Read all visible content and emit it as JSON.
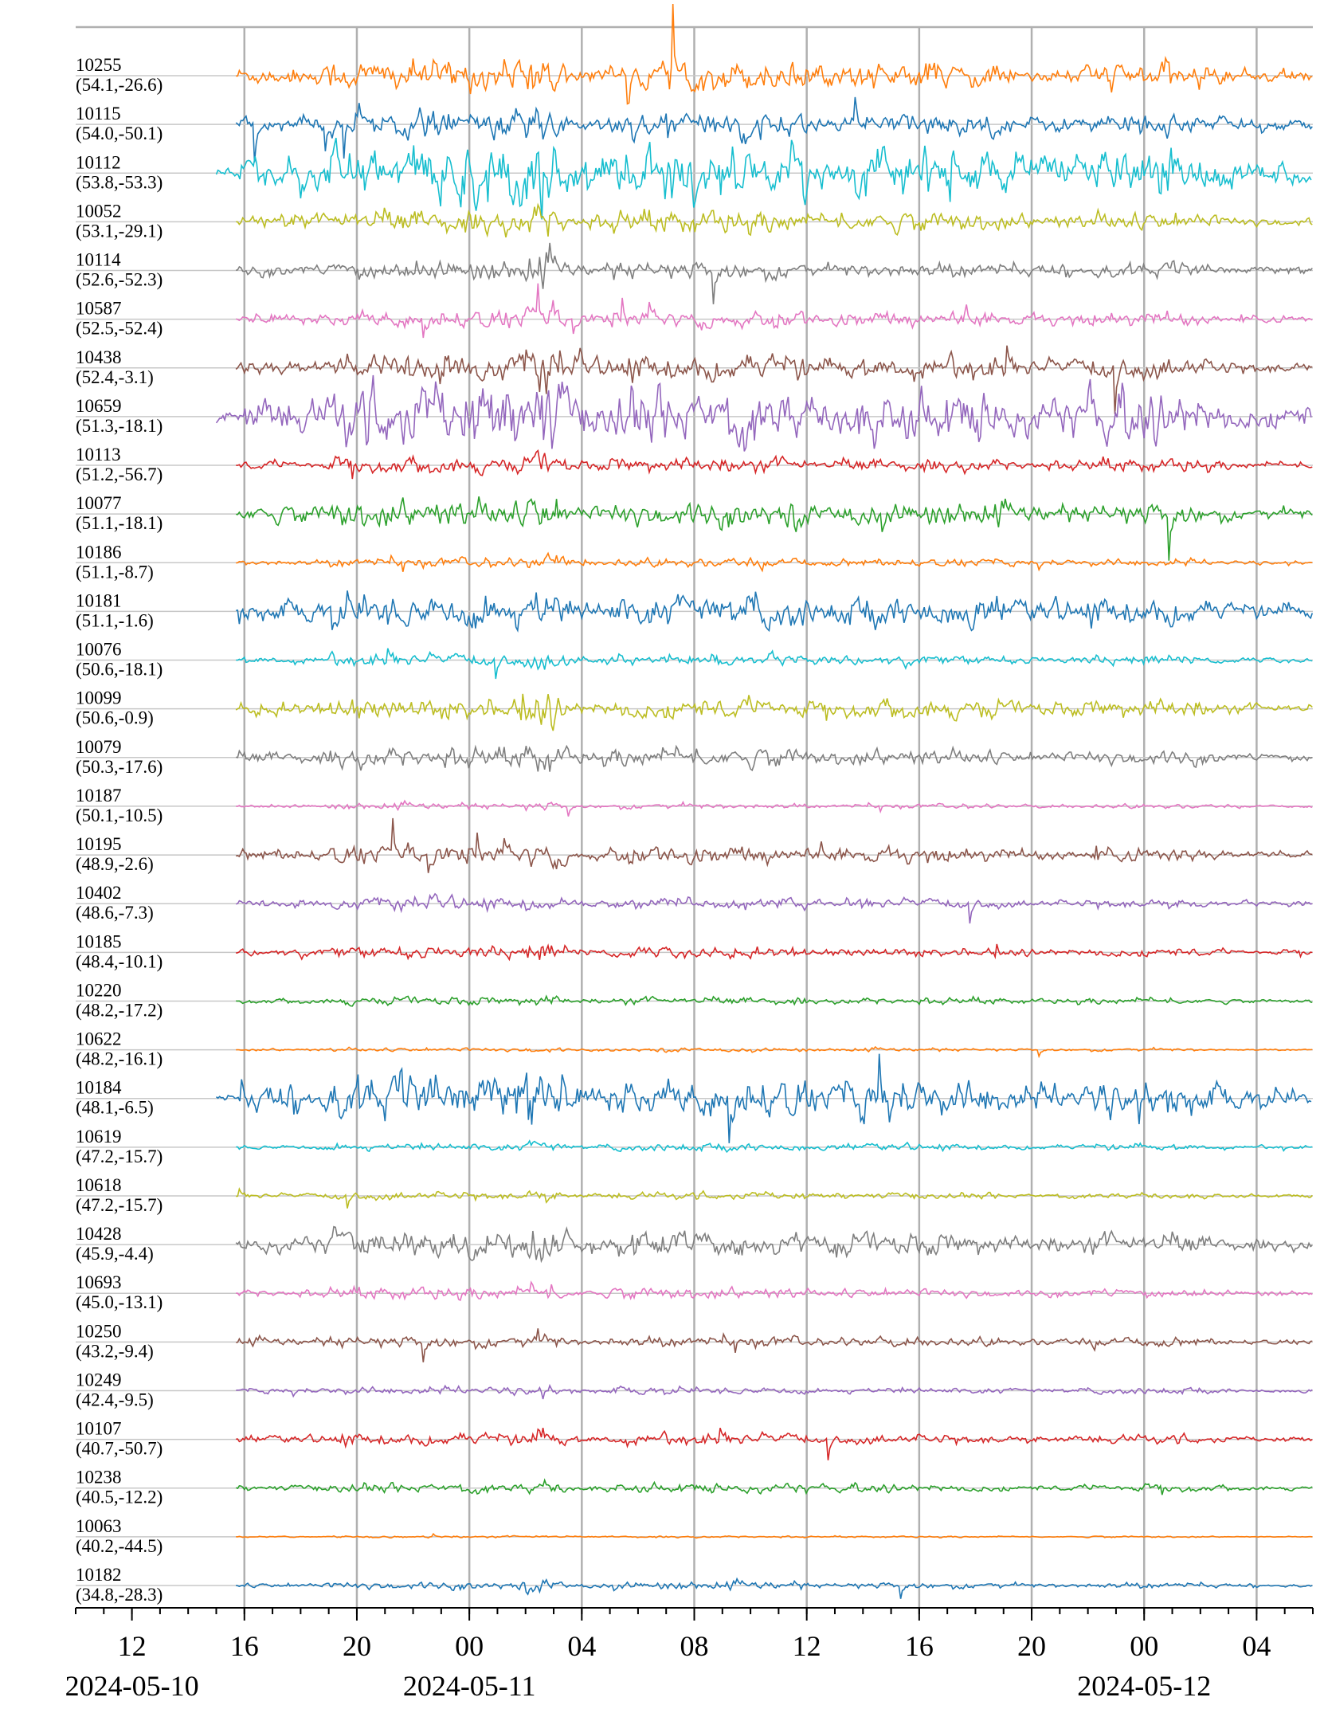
{
  "chart_data": {
    "type": "line",
    "title": "",
    "xlabel": "",
    "ylabel": "",
    "xlim": [
      "2024-05-10 10:00",
      "2024-05-12 06:00"
    ],
    "grid": true,
    "x_major_tick_labels": [
      "12",
      "16",
      "20",
      "00",
      "04",
      "08",
      "12",
      "16",
      "20",
      "00",
      "04"
    ],
    "date_labels": [
      "2024-05-10",
      "2024-05-11",
      "2024-05-12"
    ],
    "series": [
      {
        "station": "10255",
        "coords": "(54.1,-26.6)",
        "color": "#ff7f0e",
        "amp": 0.8
      },
      {
        "station": "10115",
        "coords": "(54.0,-50.1)",
        "color": "#1f77b4",
        "amp": 0.7
      },
      {
        "station": "10112",
        "coords": "(53.8,-53.3)",
        "color": "#17becf",
        "amp": 1.5
      },
      {
        "station": "10052",
        "coords": "(53.1,-29.1)",
        "color": "#bcbd22",
        "amp": 0.6
      },
      {
        "station": "10114",
        "coords": "(52.6,-52.3)",
        "color": "#7f7f7f",
        "amp": 0.5
      },
      {
        "station": "10587",
        "coords": "(52.5,-52.4)",
        "color": "#e377c2",
        "amp": 0.5
      },
      {
        "station": "10438",
        "coords": "(52.4,-3.1)",
        "color": "#8c564b",
        "amp": 0.7
      },
      {
        "station": "10659",
        "coords": "(51.3,-18.1)",
        "color": "#9467bd",
        "amp": 1.6
      },
      {
        "station": "10113",
        "coords": "(51.2,-56.7)",
        "color": "#d62728",
        "amp": 0.4
      },
      {
        "station": "10077",
        "coords": "(51.1,-18.1)",
        "color": "#2ca02c",
        "amp": 0.7
      },
      {
        "station": "10186",
        "coords": "(51.1,-8.7)",
        "color": "#ff7f0e",
        "amp": 0.25
      },
      {
        "station": "10181",
        "coords": "(51.1,-1.6)",
        "color": "#1f77b4",
        "amp": 0.9
      },
      {
        "station": "10076",
        "coords": "(50.6,-18.1)",
        "color": "#17becf",
        "amp": 0.3
      },
      {
        "station": "10099",
        "coords": "(50.6,-0.9)",
        "color": "#bcbd22",
        "amp": 0.6
      },
      {
        "station": "10079",
        "coords": "(50.3,-17.6)",
        "color": "#7f7f7f",
        "amp": 0.5
      },
      {
        "station": "10187",
        "coords": "(50.1,-10.5)",
        "color": "#e377c2",
        "amp": 0.15
      },
      {
        "station": "10195",
        "coords": "(48.9,-2.6)",
        "color": "#8c564b",
        "amp": 0.5
      },
      {
        "station": "10402",
        "coords": "(48.6,-7.3)",
        "color": "#9467bd",
        "amp": 0.3
      },
      {
        "station": "10185",
        "coords": "(48.4,-10.1)",
        "color": "#d62728",
        "amp": 0.3
      },
      {
        "station": "10220",
        "coords": "(48.2,-17.2)",
        "color": "#2ca02c",
        "amp": 0.2
      },
      {
        "station": "10622",
        "coords": "(48.2,-16.1)",
        "color": "#ff7f0e",
        "amp": 0.1
      },
      {
        "station": "10184",
        "coords": "(48.1,-6.5)",
        "color": "#1f77b4",
        "amp": 1.2
      },
      {
        "station": "10619",
        "coords": "(47.2,-15.7)",
        "color": "#17becf",
        "amp": 0.2
      },
      {
        "station": "10618",
        "coords": "(47.2,-15.7)",
        "color": "#bcbd22",
        "amp": 0.2
      },
      {
        "station": "10428",
        "coords": "(45.9,-4.4)",
        "color": "#7f7f7f",
        "amp": 0.7
      },
      {
        "station": "10693",
        "coords": "(45.0,-13.1)",
        "color": "#e377c2",
        "amp": 0.3
      },
      {
        "station": "10250",
        "coords": "(43.2,-9.4)",
        "color": "#8c564b",
        "amp": 0.3
      },
      {
        "station": "10249",
        "coords": "(42.4,-9.5)",
        "color": "#9467bd",
        "amp": 0.2
      },
      {
        "station": "10107",
        "coords": "(40.7,-50.7)",
        "color": "#d62728",
        "amp": 0.3
      },
      {
        "station": "10238",
        "coords": "(40.5,-12.2)",
        "color": "#2ca02c",
        "amp": 0.25
      },
      {
        "station": "10063",
        "coords": "(40.2,-44.5)",
        "color": "#ff7f0e",
        "amp": 0.05
      },
      {
        "station": "10182",
        "coords": "(34.8,-28.3)",
        "color": "#1f77b4",
        "amp": 0.2
      }
    ]
  }
}
